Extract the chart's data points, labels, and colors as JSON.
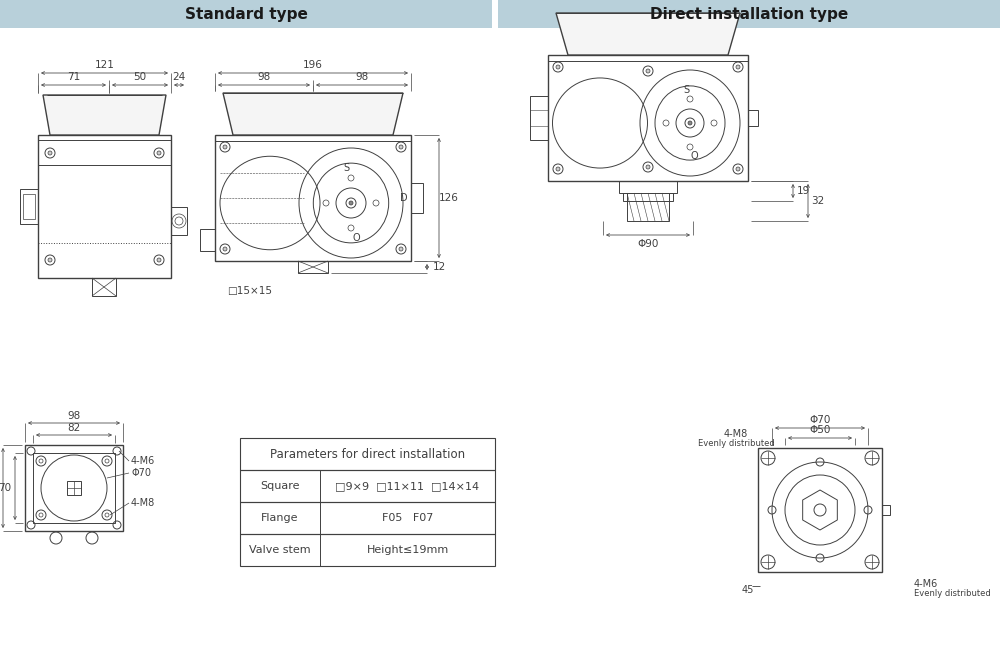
{
  "title_left": "Standard type",
  "title_right": "Direct installation type",
  "header_bg": "#b8d0da",
  "line_color": "#404040",
  "bg_color": "#ffffff",
  "table_header": "Parameters for direct installation",
  "table_rows": [
    [
      "Square",
      "□9×9  □11×11  □14×14"
    ],
    [
      "Flange",
      "F05   F07"
    ],
    [
      "Valve stem",
      "Height≤19mm"
    ]
  ]
}
